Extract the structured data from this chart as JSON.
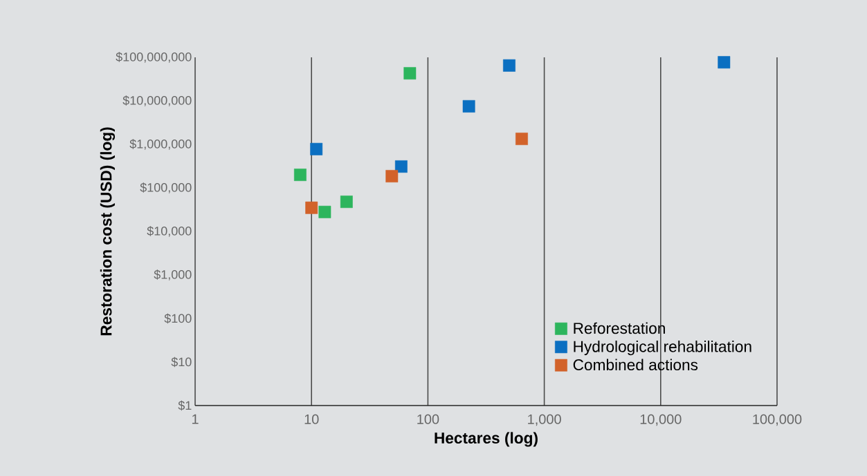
{
  "chart_data": {
    "type": "scatter",
    "xlabel": "Hectares (log)",
    "ylabel": "Restoration cost (USD) (log)",
    "log": "xy",
    "grid": "x",
    "legend": "bottom right",
    "marker": "square",
    "xlim": [
      1,
      100000
    ],
    "ylim": [
      1,
      100000000
    ],
    "xticks": [
      1,
      10,
      100,
      {
        "value": 1000,
        "label": "1,000"
      },
      {
        "value": 10000,
        "label": "10,000"
      },
      {
        "value": 100000,
        "label": "100,000"
      }
    ],
    "yticks": [
      {
        "value": 1,
        "label": "$1"
      },
      {
        "value": 10,
        "label": "$10"
      },
      {
        "value": 100,
        "label": "$100"
      },
      {
        "value": 1000,
        "label": "$1,000"
      },
      {
        "value": 10000,
        "label": "$10,000"
      },
      {
        "value": 100000,
        "label": "$100,000"
      },
      {
        "value": 1000000,
        "label": "$1,000,000"
      },
      {
        "value": 10000000,
        "label": "$10,000,000"
      },
      {
        "value": 100000000,
        "label": "$100,000,000"
      }
    ],
    "series": [
      {
        "name": "Reforestation",
        "color": "#2db55d",
        "x": [
          8,
          13,
          20,
          70
        ],
        "values": [
          200000,
          28000,
          48000,
          43000000
        ]
      },
      {
        "name": "Hydrological rehabilitation",
        "color": "#0b6fc1",
        "x": [
          11,
          59,
          225,
          500,
          35000
        ],
        "values": [
          780000,
          310000,
          7500000,
          65000000,
          77000000
        ]
      },
      {
        "name": "Combined actions",
        "color": "#d2622a",
        "x": [
          10,
          49,
          640
        ],
        "values": [
          35000,
          186000,
          1340000
        ]
      }
    ]
  }
}
